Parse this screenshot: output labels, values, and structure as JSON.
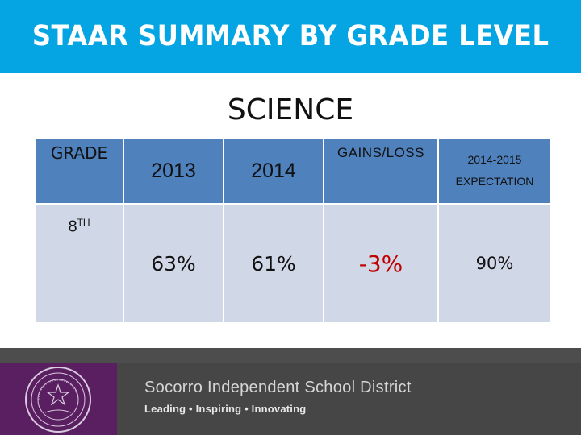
{
  "title": "STAAR SUMMARY BY GRADE LEVEL",
  "subtitle": "SCIENCE",
  "table": {
    "headers": {
      "grade": "GRADE",
      "year1": "2013",
      "year2": "2014",
      "gains_loss": "GAINS/LOSS",
      "expectation_line1": "2014-2015",
      "expectation_line2": "EXPECTATION"
    },
    "row": {
      "grade_number": "8",
      "grade_suffix": "TH",
      "year1": "63%",
      "year2": "61%",
      "gains_loss": "-3%",
      "expectation": "90%"
    }
  },
  "footer": {
    "district_name": "Socorro Independent School District",
    "motto": "Leading • Inspiring • Innovating",
    "logo_icon": "district-seal-icon"
  },
  "colors": {
    "title_bar": "#05a4e2",
    "table_header": "#4f81bd",
    "table_body": "#d0d8e8",
    "negative": "#c00000",
    "footer_logo_bg": "#5a1f60",
    "footer_bg": "#464646"
  }
}
